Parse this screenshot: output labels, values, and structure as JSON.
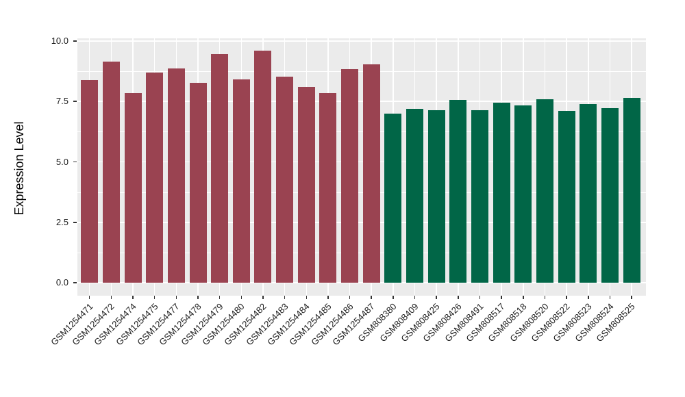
{
  "figure": {
    "background": "#FFFFFF",
    "panel_background": "#EBEBEB",
    "gridline_color": "#FFFFFF",
    "axis_text_color": "#1A1A1A",
    "bar_color_left_group": "#9A4351",
    "bar_color_right_group": "#016647"
  },
  "chart_data": {
    "type": "bar",
    "title": "",
    "xlabel": "",
    "ylabel": "Expression Level",
    "ylim": [
      0,
      10
    ],
    "ytick_labels": [
      "0.0",
      "2.5",
      "5.0",
      "7.5",
      "10.0"
    ],
    "ytick_values": [
      0,
      2.5,
      5,
      7.5,
      10
    ],
    "yminor_values": [
      1.25,
      3.75,
      6.25,
      8.75
    ],
    "grid": "major-and-minor-horizontal, vertical-at-categories",
    "legend": "none",
    "categories": [
      "GSM1254471",
      "GSM1254472",
      "GSM1254474",
      "GSM1254475",
      "GSM1254477",
      "GSM1254478",
      "GSM1254479",
      "GSM1254480",
      "GSM1254482",
      "GSM1254483",
      "GSM1254484",
      "GSM1254485",
      "GSM1254486",
      "GSM1254487",
      "GSM808380",
      "GSM808409",
      "GSM808425",
      "GSM808426",
      "GSM808491",
      "GSM808517",
      "GSM808518",
      "GSM808520",
      "GSM808522",
      "GSM808523",
      "GSM808524",
      "GSM808525"
    ],
    "values": [
      8.38,
      9.14,
      7.86,
      8.69,
      8.87,
      8.26,
      9.45,
      8.41,
      9.6,
      8.52,
      8.1,
      7.86,
      8.83,
      9.05,
      7.01,
      7.19,
      7.14,
      7.56,
      7.14,
      7.44,
      7.34,
      7.58,
      7.12,
      7.4,
      7.22,
      7.65
    ],
    "bar_colors": [
      "#9A4351",
      "#9A4351",
      "#9A4351",
      "#9A4351",
      "#9A4351",
      "#9A4351",
      "#9A4351",
      "#9A4351",
      "#9A4351",
      "#9A4351",
      "#9A4351",
      "#9A4351",
      "#9A4351",
      "#9A4351",
      "#016647",
      "#016647",
      "#016647",
      "#016647",
      "#016647",
      "#016647",
      "#016647",
      "#016647",
      "#016647",
      "#016647",
      "#016647",
      "#016647"
    ]
  }
}
